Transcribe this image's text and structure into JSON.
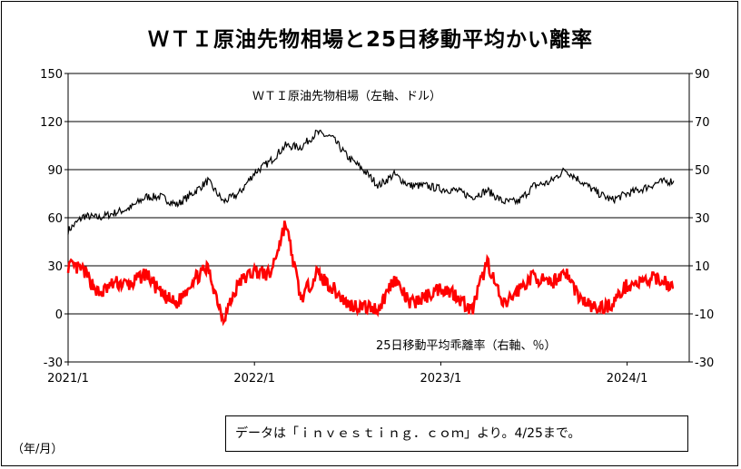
{
  "title": "ＷＴＩ原油先物相場と25日移動平均かい離率",
  "unit_label": "（年/月）",
  "source_note": "データは「ｉｎｖｅｓｔｉｎｇ．ｃｏｍ」より。4/25まで。",
  "colors": {
    "wti_line": "#000000",
    "deviation_line": "#ff0000",
    "grid": "#000000"
  },
  "chart_data": {
    "type": "line",
    "title": "ＷＴＩ原油先物相場と25日移動平均かい離率",
    "x_ticks": [
      "2021/1",
      "2022/1",
      "2023/1",
      "2024/1"
    ],
    "x_range": [
      "2021/1",
      "2024/5"
    ],
    "left_axis": {
      "range": [
        -30,
        150
      ],
      "ticks": [
        "150",
        "120",
        "90",
        "60",
        "30",
        "0",
        "-30"
      ]
    },
    "right_axis": {
      "range": [
        -30,
        90
      ],
      "ticks": [
        "90",
        "70",
        "50",
        "30",
        "10",
        "-10",
        "-30"
      ]
    },
    "grid": true,
    "series": [
      {
        "name": "ＷＴＩ原油先物相場（左軸、ドル）",
        "axis": "left",
        "points": [
          [
            "2021-01",
            52
          ],
          [
            "2021-02",
            61
          ],
          [
            "2021-03",
            60
          ],
          [
            "2021-04",
            63
          ],
          [
            "2021-05",
            66
          ],
          [
            "2021-06",
            73
          ],
          [
            "2021-07",
            73
          ],
          [
            "2021-08",
            68
          ],
          [
            "2021-09",
            75
          ],
          [
            "2021-10",
            83
          ],
          [
            "2021-11",
            70
          ],
          [
            "2021-12",
            75
          ],
          [
            "2022-01",
            88
          ],
          [
            "2022-02",
            95
          ],
          [
            "2022-03",
            105
          ],
          [
            "2022-04",
            104
          ],
          [
            "2022-05",
            113
          ],
          [
            "2022-06",
            110
          ],
          [
            "2022-07",
            98
          ],
          [
            "2022-08",
            90
          ],
          [
            "2022-09",
            80
          ],
          [
            "2022-10",
            87
          ],
          [
            "2022-11",
            80
          ],
          [
            "2022-12",
            80
          ],
          [
            "2023-01",
            78
          ],
          [
            "2023-02",
            77
          ],
          [
            "2023-03",
            73
          ],
          [
            "2023-04",
            77
          ],
          [
            "2023-05",
            70
          ],
          [
            "2023-06",
            70
          ],
          [
            "2023-07",
            80
          ],
          [
            "2023-08",
            82
          ],
          [
            "2023-09",
            90
          ],
          [
            "2023-10",
            83
          ],
          [
            "2023-11",
            76
          ],
          [
            "2023-12",
            71
          ],
          [
            "2024-01",
            75
          ],
          [
            "2024-02",
            78
          ],
          [
            "2024-03",
            82
          ],
          [
            "2024-04",
            83
          ]
        ]
      },
      {
        "name": "25日移動平均乖離率（右軸、％）",
        "axis": "right",
        "points": [
          [
            "2021-01",
            10
          ],
          [
            "2021-02",
            8
          ],
          [
            "2021-03",
            -2
          ],
          [
            "2021-04",
            3
          ],
          [
            "2021-05",
            2
          ],
          [
            "2021-06",
            7
          ],
          [
            "2021-07",
            -2
          ],
          [
            "2021-08",
            -6
          ],
          [
            "2021-09",
            4
          ],
          [
            "2021-10",
            9
          ],
          [
            "2021-11",
            -12
          ],
          [
            "2021-12",
            3
          ],
          [
            "2022-01",
            8
          ],
          [
            "2022-02",
            6
          ],
          [
            "2022-03",
            28
          ],
          [
            "2022-04",
            -4
          ],
          [
            "2022-05",
            7
          ],
          [
            "2022-06",
            1
          ],
          [
            "2022-07",
            -6
          ],
          [
            "2022-08",
            -7
          ],
          [
            "2022-09",
            -8
          ],
          [
            "2022-10",
            5
          ],
          [
            "2022-11",
            -6
          ],
          [
            "2022-12",
            -3
          ],
          [
            "2023-01",
            1
          ],
          [
            "2023-02",
            -2
          ],
          [
            "2023-03",
            -9
          ],
          [
            "2023-04",
            12
          ],
          [
            "2023-05",
            -7
          ],
          [
            "2023-06",
            0
          ],
          [
            "2023-07",
            6
          ],
          [
            "2023-08",
            2
          ],
          [
            "2023-09",
            8
          ],
          [
            "2023-10",
            -4
          ],
          [
            "2023-11",
            -8
          ],
          [
            "2023-12",
            -6
          ],
          [
            "2024-01",
            2
          ],
          [
            "2024-02",
            3
          ],
          [
            "2024-03",
            5
          ],
          [
            "2024-04",
            1
          ]
        ]
      }
    ]
  }
}
